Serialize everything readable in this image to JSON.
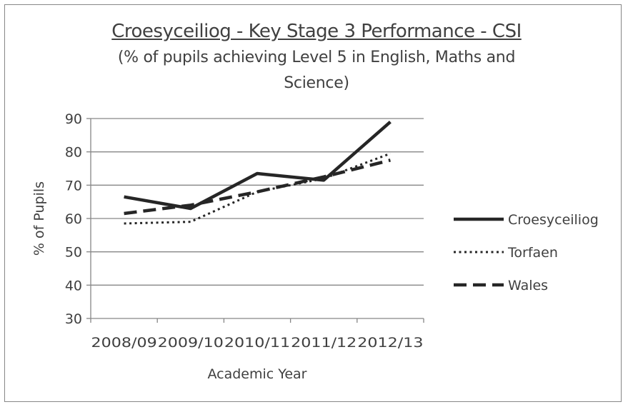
{
  "chart_data": {
    "type": "line",
    "title": "Croesyceiliog - Key Stage 3 Performance - CSI",
    "subtitle": "(% of pupils achieving Level 5 in English, Maths and Science)",
    "subtitle_lines": [
      "(% of pupils achieving Level 5 in English, Maths and",
      "Science)"
    ],
    "xlabel": "Academic Year",
    "ylabel": "% of Pupils",
    "categories": [
      "2008/09",
      "2009/10",
      "2010/11",
      "2011/12",
      "2012/13"
    ],
    "ylim": [
      30,
      90
    ],
    "yticks": [
      30,
      40,
      50,
      60,
      70,
      80,
      90
    ],
    "grid": "horizontal",
    "legend_position": "right",
    "series": [
      {
        "name": "Croesyceiliog",
        "style": "solid",
        "color": "#262626",
        "values": [
          66.5,
          63,
          73.5,
          71.5,
          89
        ]
      },
      {
        "name": "Torfaen",
        "style": "dotted",
        "color": "#262626",
        "values": [
          58.5,
          59,
          68,
          72,
          79.5
        ]
      },
      {
        "name": "Wales",
        "style": "dashed",
        "color": "#262626",
        "values": [
          61.5,
          64,
          68,
          72.5,
          77.5
        ]
      }
    ]
  }
}
